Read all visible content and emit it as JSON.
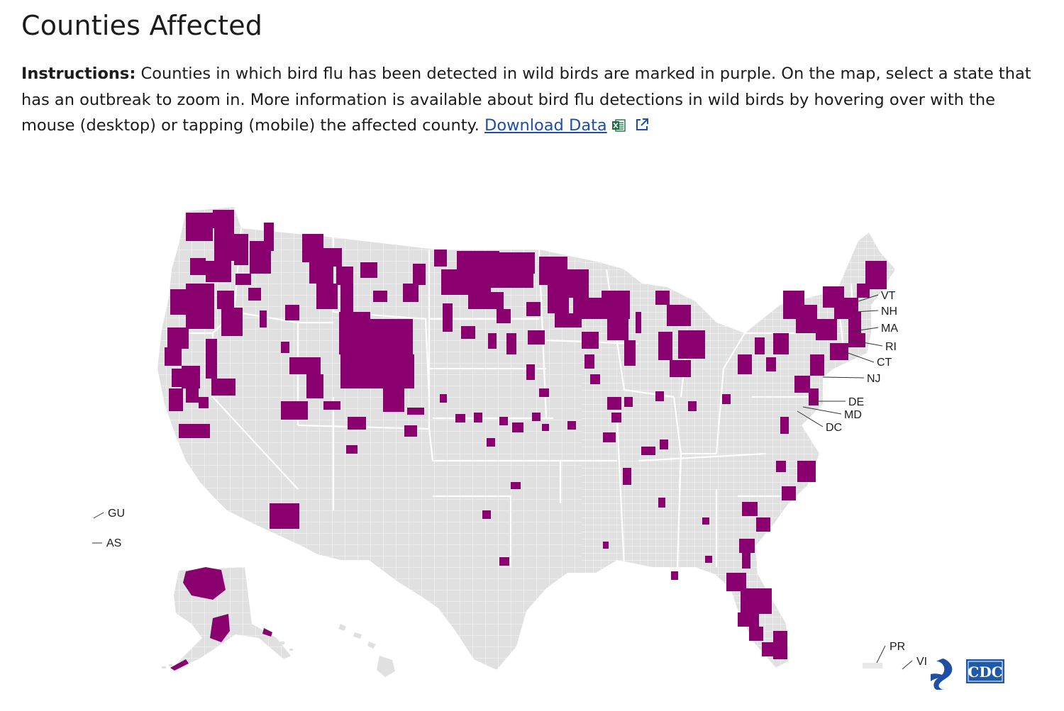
{
  "header": {
    "title": "Counties Affected"
  },
  "instructions": {
    "label": "Instructions:",
    "text": " Counties in which bird flu has been detected in wild birds are marked in purple. On the map, select a state that has an outbreak to zoom in. More information is available about bird flu detections in wild birds by hovering over with the mouse (desktop) or tapping (mobile) the affected county. ",
    "download_link": "Download Data"
  },
  "map": {
    "base_color": "#e0e0e0",
    "affected_color": "#8b006f",
    "border_color": "#ffffff",
    "callouts": [
      "VT",
      "NH",
      "MA",
      "RI",
      "CT",
      "NJ",
      "DE",
      "MD",
      "DC"
    ],
    "territories": [
      "GU",
      "AS",
      "PR",
      "VI"
    ]
  },
  "footer": {
    "logo_text": "CDC"
  },
  "icons": {
    "excel": "excel-icon",
    "external_link": "external-link-icon",
    "hhs_logo": "hhs-eagle-icon"
  }
}
